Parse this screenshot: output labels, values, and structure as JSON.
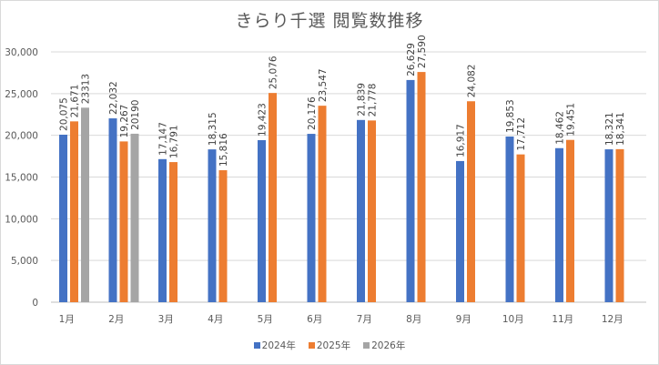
{
  "chart_data": {
    "type": "bar",
    "title": "きらり千選 閲覧数推移",
    "xlabel": "",
    "ylabel": "",
    "ylim": [
      0,
      30000
    ],
    "yticks": [
      0,
      5000,
      10000,
      15000,
      20000,
      25000,
      30000
    ],
    "ytick_labels": [
      "0",
      "5,000",
      "10,000",
      "15,000",
      "20,000",
      "25,000",
      "30,000"
    ],
    "grid": true,
    "legend_position": "bottom",
    "categories": [
      "1月",
      "2月",
      "3月",
      "4月",
      "5月",
      "6月",
      "7月",
      "8月",
      "9月",
      "10月",
      "11月",
      "12月"
    ],
    "series": [
      {
        "name": "2024年",
        "color": "#4472c4",
        "values": [
          20075,
          22032,
          17147,
          18315,
          19423,
          20176,
          21839,
          26629,
          16917,
          19853,
          18462,
          18321
        ],
        "labels": [
          "20,075",
          "22,032",
          "17,147",
          "18,315",
          "19,423",
          "20,176",
          "21,839",
          "26,629",
          "16,917",
          "19,853",
          "18,462",
          "18,321"
        ]
      },
      {
        "name": "2025年",
        "color": "#ed7d31",
        "values": [
          21671,
          19267,
          16791,
          15816,
          25076,
          23547,
          21778,
          27590,
          24082,
          17712,
          19451,
          18341
        ],
        "labels": [
          "21,671",
          "19,267",
          "16,791",
          "15,816",
          "25,076",
          "23,547",
          "21,778",
          "27,590",
          "24,082",
          "17,712",
          "19,451",
          "18,341"
        ]
      },
      {
        "name": "2026年",
        "color": "#a5a5a5",
        "values": [
          23313,
          20190,
          null,
          null,
          null,
          null,
          null,
          null,
          null,
          null,
          null,
          null
        ],
        "labels": [
          "23313",
          "20190",
          null,
          null,
          null,
          null,
          null,
          null,
          null,
          null,
          null,
          null
        ]
      }
    ]
  }
}
